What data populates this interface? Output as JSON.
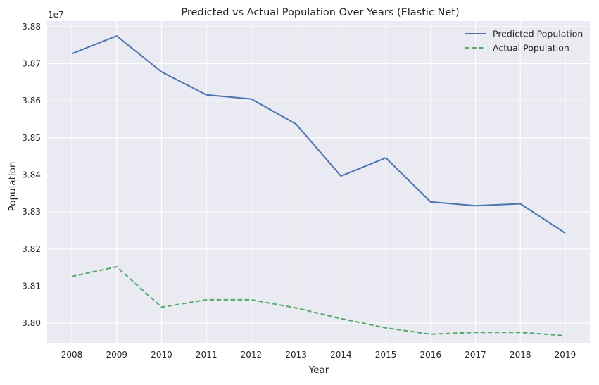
{
  "chart_data": {
    "type": "line",
    "title": "Predicted vs Actual Population Over Years (Elastic Net)",
    "xlabel": "Year",
    "ylabel": "Population",
    "y_offset_label": "1e7",
    "x": [
      2008,
      2009,
      2010,
      2011,
      2012,
      2013,
      2014,
      2015,
      2016,
      2017,
      2018,
      2019
    ],
    "x_tick_labels": [
      "2008",
      "2009",
      "2010",
      "2011",
      "2012",
      "2013",
      "2014",
      "2015",
      "2016",
      "2017",
      "2018",
      "2019"
    ],
    "ylim": [
      3.7945,
      3.8815
    ],
    "y_ticks": [
      3.8,
      3.81,
      3.82,
      3.83,
      3.84,
      3.85,
      3.86,
      3.87,
      3.88
    ],
    "y_tick_labels": [
      "3.80",
      "3.81",
      "3.82",
      "3.83",
      "3.84",
      "3.85",
      "3.86",
      "3.87",
      "3.88"
    ],
    "y_scale_factor": 10000000,
    "grid": true,
    "legend_position": "top-right",
    "series": [
      {
        "name": "Predicted Population",
        "color": "#4c72b0",
        "line_style": "solid",
        "values": [
          3.8727,
          3.8775,
          3.8678,
          3.8616,
          3.8605,
          3.8537,
          3.8397,
          3.8446,
          3.8327,
          3.8317,
          3.8322,
          3.8243
        ]
      },
      {
        "name": "Actual Population",
        "color": "#55a868",
        "line_style": "dashed",
        "values": [
          3.8126,
          3.8152,
          3.8043,
          3.8063,
          3.8063,
          3.8041,
          3.8012,
          3.7987,
          3.797,
          3.7975,
          3.7975,
          3.7966
        ]
      }
    ]
  }
}
